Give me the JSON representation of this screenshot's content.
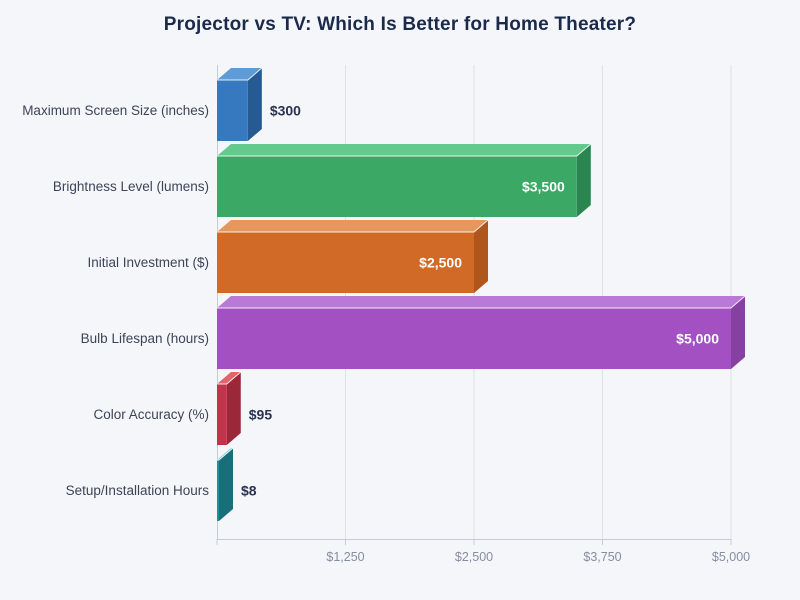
{
  "title": "Projector vs TV: Which Is Better for Home Theater?",
  "colors": {
    "background": "#f4f6fa",
    "title_text": "#1b2a4a",
    "category_label": "#3d4458",
    "value_label_inside": "#ffffff",
    "value_label_outside": "#2a3152",
    "gridline": "#dde1e9",
    "axis_line": "#c6ccd6",
    "tick_label": "#868da0"
  },
  "chart_data": {
    "type": "bar",
    "orientation": "horizontal",
    "style": "3d",
    "title": "Projector vs TV: Which Is Better for Home Theater?",
    "categories": [
      "Maximum Screen Size (inches)",
      "Brightness Level (lumens)",
      "Initial Investment ($)",
      "Bulb Lifespan (hours)",
      "Color Accuracy (%)",
      "Setup/Installation Hours"
    ],
    "values": [
      300,
      3500,
      2500,
      5000,
      95,
      8
    ],
    "value_labels": [
      "$300",
      "$3,500",
      "$2,500",
      "$5,000",
      "$95",
      "$8"
    ],
    "value_label_inside_bar": [
      false,
      true,
      true,
      true,
      false,
      false
    ],
    "bar_colors": [
      {
        "front": "#3679bf",
        "top": "#5f9bd6",
        "side": "#255b92"
      },
      {
        "front": "#3ba965",
        "top": "#63c98c",
        "side": "#2b8551"
      },
      {
        "front": "#d16a27",
        "top": "#e6975d",
        "side": "#b0551c"
      },
      {
        "front": "#a350c3",
        "top": "#ba79d6",
        "side": "#8540a2"
      },
      {
        "front": "#c33349",
        "top": "#e2656e",
        "side": "#9b2838"
      },
      {
        "front": "#1f919d",
        "top": "#7ecdd6",
        "side": "#186f79"
      }
    ],
    "xlabel": "",
    "ylabel": "",
    "x_axis": {
      "min": 0,
      "max": 5000,
      "ticks": [
        1250,
        2500,
        3750,
        5000
      ],
      "tick_labels": [
        "$1,250",
        "$2,500",
        "$3,750",
        "$5,000"
      ]
    },
    "grid": true,
    "legend": false
  }
}
